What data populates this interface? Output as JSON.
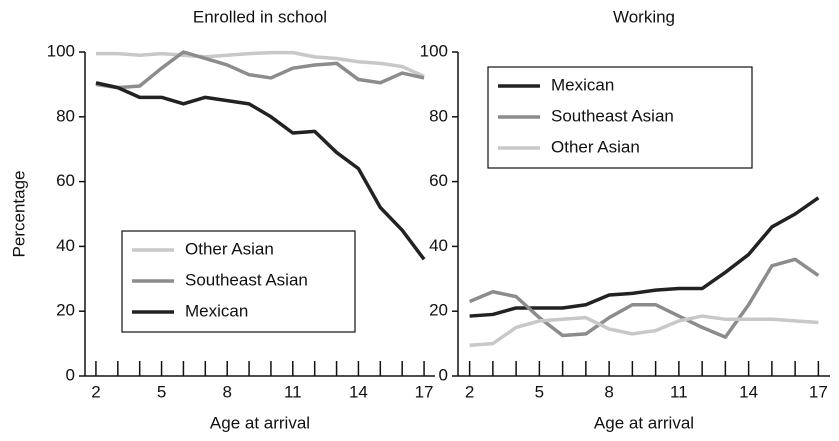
{
  "chart_data": [
    {
      "type": "line",
      "title": "Enrolled in school",
      "xlabel": "Age at arrival",
      "ylabel": "Percentage",
      "x": [
        2,
        3,
        4,
        5,
        6,
        7,
        8,
        9,
        10,
        11,
        12,
        13,
        14,
        15,
        16,
        17
      ],
      "xlim": [
        1.5,
        17.5
      ],
      "xticks": [
        2,
        5,
        8,
        11,
        14,
        17
      ],
      "xminorticks": [
        3,
        4,
        6,
        7,
        9,
        10,
        12,
        13,
        15,
        16
      ],
      "ylim": [
        0,
        100
      ],
      "yticks": [
        0,
        20,
        40,
        60,
        80,
        100
      ],
      "legend_position": "lower center",
      "series": [
        {
          "name": "Other Asian",
          "color": "#c8c8c8",
          "values": [
            99.5,
            99.5,
            99,
            99.5,
            99,
            98.5,
            99,
            99.5,
            99.8,
            99.8,
            98.5,
            98,
            97,
            96.5,
            95.5,
            92.5
          ]
        },
        {
          "name": "Southeast Asian",
          "color": "#8c8c8c",
          "values": [
            90,
            89,
            89.5,
            95,
            100,
            98,
            96,
            93,
            92,
            95,
            96,
            96.5,
            91.5,
            90.5,
            93.5,
            92
          ]
        },
        {
          "name": "Mexican",
          "color": "#222222",
          "values": [
            90.5,
            89,
            86,
            86,
            84,
            86,
            85,
            84,
            80,
            75,
            75.5,
            69,
            64,
            52,
            45,
            36
          ]
        }
      ]
    },
    {
      "type": "line",
      "title": "Working",
      "xlabel": "Age at arrival",
      "x": [
        2,
        3,
        4,
        5,
        6,
        7,
        8,
        9,
        10,
        11,
        12,
        13,
        14,
        15,
        16,
        17
      ],
      "xlim": [
        1.5,
        17.5
      ],
      "xticks": [
        2,
        5,
        8,
        11,
        14,
        17
      ],
      "xminorticks": [
        3,
        4,
        6,
        7,
        9,
        10,
        12,
        13,
        15,
        16
      ],
      "ylim": [
        0,
        100
      ],
      "yticks": [
        0,
        20,
        40,
        60,
        80,
        100
      ],
      "legend_position": "upper left",
      "series": [
        {
          "name": "Mexican",
          "color": "#222222",
          "values": [
            18.5,
            19,
            21,
            21,
            21,
            22,
            25,
            25.5,
            26.5,
            27,
            27,
            32,
            37.5,
            46,
            50,
            55
          ]
        },
        {
          "name": "Southeast Asian",
          "color": "#8c8c8c",
          "values": [
            23,
            26,
            24.5,
            18,
            12.5,
            13,
            18,
            22,
            22,
            18.5,
            15,
            12,
            22,
            34,
            36,
            31
          ]
        },
        {
          "name": "Other Asian",
          "color": "#c8c8c8",
          "values": [
            9.5,
            10,
            15,
            17,
            17.5,
            18,
            14.5,
            13,
            14,
            17,
            18.5,
            17.5,
            17.5,
            17.5,
            17,
            16.5
          ]
        }
      ]
    }
  ]
}
